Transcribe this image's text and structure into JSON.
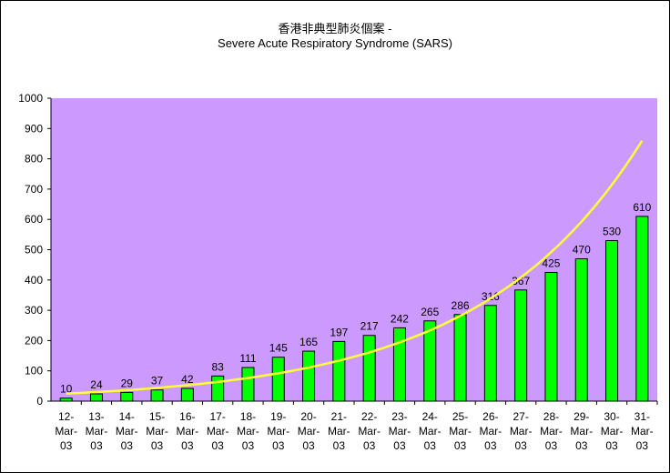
{
  "chart_data": {
    "type": "bar",
    "title": "香港非典型肺炎個案 -",
    "subtitle": "Severe Acute Respiratory Syndrome (SARS)",
    "xlabel": "",
    "ylabel": "",
    "categories": [
      "12-Mar-03",
      "13-Mar-03",
      "14-Mar-03",
      "15-Mar-03",
      "16-Mar-03",
      "17-Mar-03",
      "18-Mar-03",
      "19-Mar-03",
      "20-Mar-03",
      "21-Mar-03",
      "22-Mar-03",
      "23-Mar-03",
      "24-Mar-03",
      "25-Mar-03",
      "26-Mar-03",
      "27-Mar-03",
      "28-Mar-03",
      "29-Mar-03",
      "30-Mar-03",
      "31-Mar-03"
    ],
    "values": [
      10,
      24,
      29,
      37,
      42,
      83,
      111,
      145,
      165,
      197,
      217,
      242,
      265,
      286,
      316,
      367,
      425,
      470,
      530,
      610
    ],
    "ylim": [
      0,
      1000
    ],
    "yticks": [
      0,
      100,
      200,
      300,
      400,
      500,
      600,
      700,
      800,
      900,
      1000
    ],
    "grid": false,
    "trendline": {
      "type": "exponential",
      "start_value": 25,
      "end_value": 860
    },
    "colors": {
      "plot_background": "#CC99FF",
      "bar": "#00FF00",
      "trendline": "#FFFF33"
    }
  }
}
